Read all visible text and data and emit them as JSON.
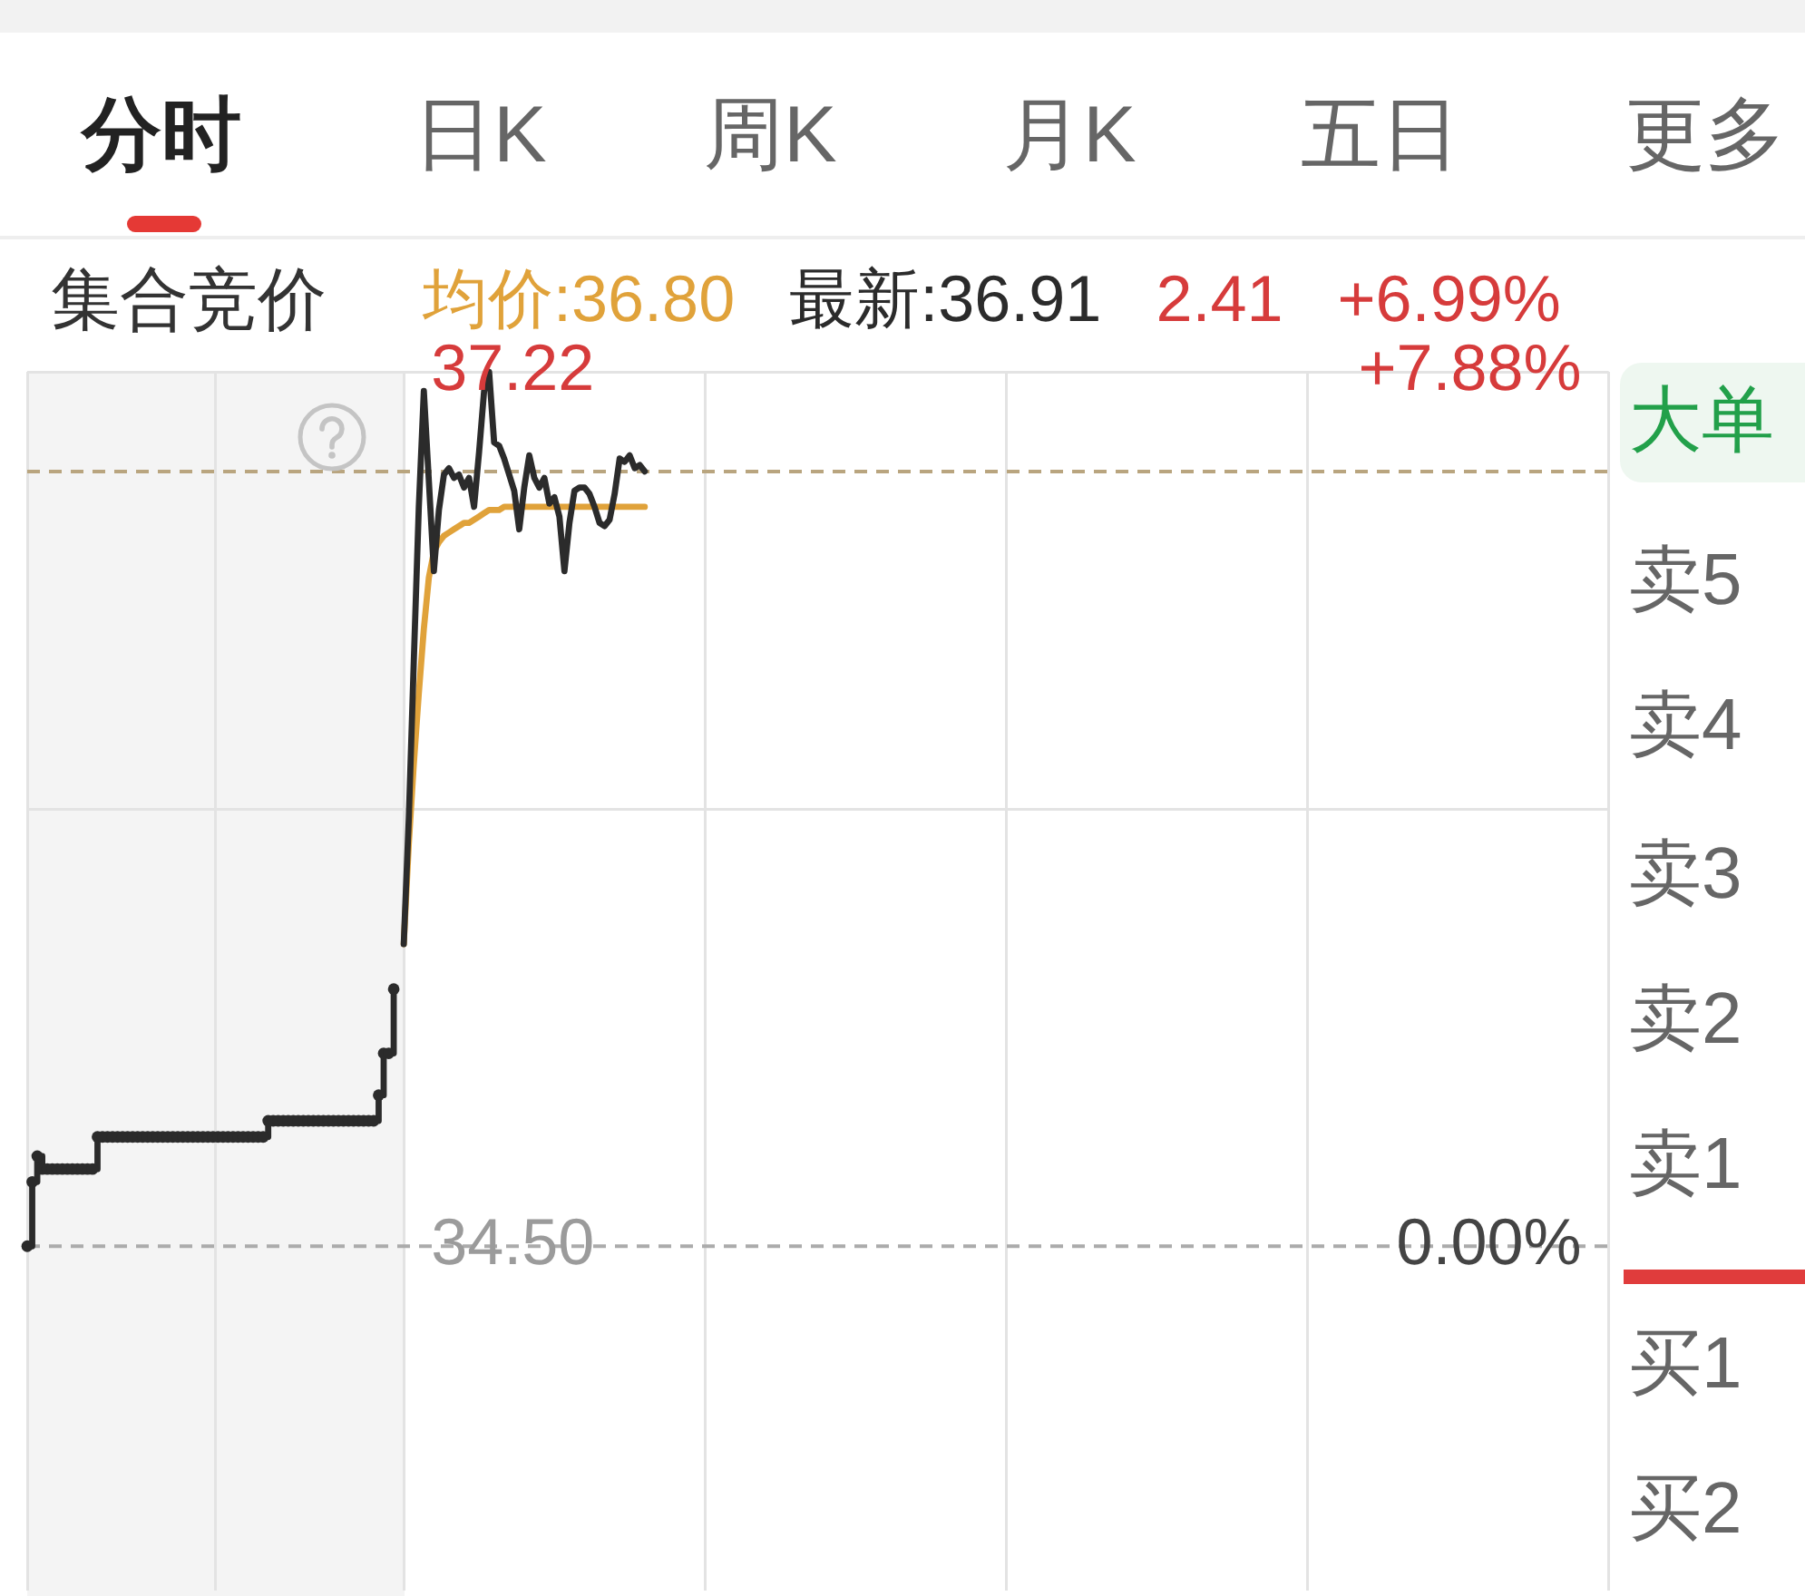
{
  "chart_data": {
    "type": "line",
    "categories": [
      null,
      null,
      null,
      null,
      null,
      null,
      null,
      null,
      null,
      null,
      null,
      null,
      null,
      null,
      null,
      null,
      null,
      null,
      null,
      null,
      null,
      null,
      null,
      null,
      null,
      null,
      null,
      null,
      null,
      null,
      null,
      null,
      null,
      null,
      null,
      null,
      null,
      null,
      null,
      null,
      null,
      null,
      null,
      null,
      null,
      null,
      null,
      null,
      null,
      null,
      null,
      null,
      null,
      null,
      null,
      null,
      null,
      null,
      null,
      null,
      null,
      null,
      null,
      null,
      null,
      null,
      null,
      null,
      null,
      null,
      null,
      null,
      null,
      null,
      null,
      null,
      null,
      null,
      null,
      null,
      null,
      null,
      null,
      null,
      null,
      null,
      null,
      null,
      null,
      null,
      null,
      null,
      null,
      null,
      null,
      null,
      null,
      null,
      null,
      null,
      null,
      null,
      null,
      null,
      null,
      null,
      null,
      null,
      null,
      null,
      null,
      null,
      null,
      null,
      null,
      null,
      null,
      null,
      null,
      null,
      null,
      null,
      null,
      null,
      null,
      null,
      null,
      null,
      null,
      null,
      null,
      null,
      null,
      null,
      null,
      null,
      null,
      null,
      null,
      null,
      null,
      null,
      null,
      null,
      null,
      null,
      null,
      null,
      null,
      null,
      null,
      null,
      null,
      null,
      null,
      null,
      null,
      null,
      null,
      null,
      null,
      null,
      null,
      null,
      null,
      null,
      null,
      null,
      null,
      null,
      null,
      null,
      null,
      null,
      null,
      null,
      null,
      null,
      null,
      null,
      null,
      null,
      null,
      null,
      null,
      null,
      null,
      null,
      null,
      null,
      null,
      null,
      null,
      null,
      null,
      null,
      null,
      null,
      null,
      null,
      null,
      null,
      null,
      null,
      null,
      null,
      null,
      null,
      null,
      null,
      null,
      null,
      null,
      null,
      null,
      null,
      null,
      null,
      null,
      null,
      null,
      null,
      null,
      null,
      null,
      null,
      null,
      null,
      null,
      null,
      null,
      null,
      null,
      null,
      null,
      null,
      null,
      null,
      null,
      null,
      null,
      null,
      null,
      null,
      null,
      null,
      null,
      null,
      null,
      null,
      null,
      null,
      null,
      null,
      null,
      null,
      null,
      null,
      null,
      null,
      null,
      null,
      null,
      null,
      null,
      null,
      null,
      null,
      null,
      null,
      null,
      null,
      null,
      null,
      null,
      null,
      null,
      null,
      null,
      null,
      null,
      null,
      null,
      null,
      null,
      null,
      null,
      null,
      null,
      null,
      null,
      null,
      null,
      null,
      null,
      null,
      null,
      null,
      null,
      null,
      null,
      null,
      null,
      null,
      null,
      null,
      null,
      null,
      null,
      null,
      null,
      null,
      null,
      null,
      null,
      null
    ],
    "series": [
      {
        "name": "均价:36.80",
        "color": "#e0a23a",
        "values": [
          null,
          null,
          null,
          null,
          null,
          null,
          null,
          null,
          null,
          null,
          null,
          null,
          null,
          null,
          null,
          null,
          null,
          null,
          null,
          null,
          null,
          null,
          null,
          null,
          null,
          null,
          null,
          null,
          null,
          null,
          null,
          null,
          null,
          null,
          null,
          null,
          null,
          null,
          null,
          null,
          null,
          null,
          null,
          null,
          null,
          null,
          null,
          null,
          null,
          null,
          null,
          null,
          null,
          null,
          null,
          null,
          null,
          null,
          null,
          null,
          null,
          null,
          null,
          null,
          null,
          null,
          null,
          null,
          null,
          null,
          null,
          null,
          null,
          null,
          null,
          35.44,
          35.75,
          36.0,
          36.22,
          36.42,
          36.58,
          36.66,
          36.69,
          36.71,
          36.72,
          36.73,
          36.74,
          36.75,
          36.75,
          36.76,
          36.77,
          36.78,
          36.79,
          36.79,
          36.79,
          36.8,
          36.8,
          36.8,
          36.8,
          36.8,
          36.8,
          36.8,
          36.8,
          36.8,
          36.8,
          36.8,
          36.8,
          36.8,
          36.8,
          36.8,
          36.8,
          36.8,
          36.8,
          36.8,
          36.8,
          36.8,
          36.8,
          36.8,
          36.8,
          36.8,
          36.8,
          36.8,
          36.8,
          36.8,
          null,
          null,
          null,
          null,
          null,
          null,
          null,
          null,
          null,
          null,
          null,
          null,
          null,
          null,
          null,
          null,
          null,
          null,
          null,
          null,
          null,
          null,
          null,
          null,
          null,
          null,
          null,
          null,
          null,
          null,
          null,
          null,
          null,
          null,
          null,
          null,
          null,
          null,
          null,
          null,
          null,
          null,
          null,
          null,
          null,
          null,
          null,
          null,
          null,
          null,
          null,
          null,
          null,
          null,
          null,
          null,
          null,
          null,
          null,
          null,
          null,
          null,
          null,
          null,
          null,
          null,
          null,
          null,
          null,
          null,
          null,
          null,
          null,
          null,
          null,
          null,
          null,
          null,
          null,
          null,
          null,
          null,
          null,
          null,
          null,
          null,
          null,
          null,
          null,
          null,
          null,
          null,
          null,
          null,
          null,
          null,
          null,
          null,
          null,
          null,
          null,
          null,
          null,
          null,
          null,
          null,
          null,
          null,
          null,
          null,
          null,
          null,
          null,
          null,
          null,
          null,
          null,
          null,
          null,
          null,
          null,
          null,
          null,
          null,
          null,
          null,
          null,
          null,
          null,
          null,
          null,
          null,
          null,
          null,
          null,
          null,
          null,
          null,
          null,
          null,
          null,
          null,
          null,
          null,
          null,
          null,
          null,
          null,
          null,
          null,
          null,
          null,
          null,
          null,
          null,
          null,
          null,
          null,
          null,
          null,
          null,
          null,
          null,
          null,
          null,
          null,
          null,
          null,
          null,
          null,
          null,
          null,
          null,
          null,
          null,
          null,
          null,
          null,
          null,
          null,
          null,
          null,
          null,
          null,
          null,
          null,
          null,
          null,
          null,
          null,
          null,
          null
        ]
      },
      {
        "name": "最新:36.91",
        "color": "#2b2b2b",
        "values": [
          null,
          null,
          null,
          null,
          null,
          null,
          null,
          null,
          null,
          null,
          null,
          null,
          null,
          null,
          null,
          null,
          null,
          null,
          null,
          null,
          null,
          null,
          null,
          null,
          null,
          null,
          null,
          null,
          null,
          null,
          null,
          null,
          null,
          null,
          null,
          null,
          null,
          null,
          null,
          null,
          null,
          null,
          null,
          null,
          null,
          null,
          null,
          null,
          null,
          null,
          null,
          null,
          null,
          null,
          null,
          null,
          null,
          null,
          null,
          null,
          null,
          null,
          null,
          null,
          null,
          null,
          null,
          null,
          null,
          null,
          null,
          null,
          null,
          null,
          null,
          35.44,
          35.83,
          36.32,
          36.8,
          37.16,
          36.88,
          36.6,
          36.79,
          36.9,
          36.92,
          36.89,
          36.9,
          36.86,
          36.89,
          36.8,
          36.97,
          37.16,
          37.22,
          37,
          36.99,
          36.95,
          36.9,
          36.85,
          36.73,
          36.86,
          36.96,
          36.89,
          36.86,
          36.89,
          36.81,
          36.83,
          36.77,
          36.6,
          36.75,
          36.85,
          36.86,
          36.86,
          36.84,
          36.8,
          36.75,
          36.74,
          36.76,
          36.84,
          36.95,
          36.94,
          36.96,
          36.92,
          36.93,
          36.91,
          null,
          null,
          null,
          null,
          null,
          null,
          null,
          null,
          null,
          null,
          null,
          null,
          null,
          null,
          null,
          null,
          null,
          null,
          null,
          null,
          null,
          null,
          null,
          null,
          null,
          null,
          null,
          null,
          null,
          null,
          null,
          null,
          null,
          null,
          null,
          null,
          null,
          null,
          null,
          null,
          null,
          null,
          null,
          null,
          null,
          null,
          null,
          null,
          null,
          null,
          null,
          null,
          null,
          null,
          null,
          null,
          null,
          null,
          null,
          null,
          null,
          null,
          null,
          null,
          null,
          null,
          null,
          null,
          null,
          null,
          null,
          null,
          null,
          null,
          null,
          null,
          null,
          null,
          null,
          null,
          null,
          null,
          null,
          null,
          null,
          null,
          null,
          null,
          null,
          null,
          null,
          null,
          null,
          null,
          null,
          null,
          null,
          null,
          null,
          null,
          null,
          null,
          null,
          null,
          null,
          null,
          null,
          null,
          null,
          null,
          null,
          null,
          null,
          null,
          null,
          null,
          null,
          null,
          null,
          null,
          null,
          null,
          null,
          null,
          null,
          null,
          null,
          null,
          null,
          null,
          null,
          null,
          null,
          null,
          null,
          null,
          null,
          null,
          null,
          null,
          null,
          null,
          null,
          null,
          null,
          null,
          null,
          null,
          null,
          null,
          null,
          null,
          null,
          null,
          null,
          null,
          null,
          null,
          null,
          null,
          null,
          null,
          null,
          null,
          null,
          null,
          null,
          null,
          null,
          null,
          null,
          null,
          null,
          null,
          null,
          null,
          null,
          null,
          null,
          null,
          null,
          null,
          null,
          null,
          null,
          null,
          null,
          null,
          null,
          null,
          null,
          null
        ]
      },
      {
        "type": "step",
        "color": "#2b2b2b",
        "marker": "circle",
        "values": [
          34.5,
          34.7,
          34.78,
          34.74,
          34.74,
          34.74,
          34.74,
          34.74,
          34.74,
          34.74,
          34.74,
          34.74,
          34.74,
          34.74,
          34.84,
          34.84,
          34.84,
          34.84,
          34.84,
          34.84,
          34.84,
          34.84,
          34.84,
          34.84,
          34.84,
          34.84,
          34.84,
          34.84,
          34.84,
          34.84,
          34.84,
          34.84,
          34.84,
          34.84,
          34.84,
          34.84,
          34.84,
          34.84,
          34.84,
          34.84,
          34.84,
          34.84,
          34.84,
          34.84,
          34.84,
          34.84,
          34.84,
          34.84,
          34.89,
          34.89,
          34.89,
          34.89,
          34.89,
          34.89,
          34.89,
          34.89,
          34.89,
          34.89,
          34.89,
          34.89,
          34.89,
          34.89,
          34.89,
          34.89,
          34.89,
          34.89,
          34.89,
          34.89,
          34.89,
          34.89,
          34.97,
          35.1,
          35.1,
          35.3,
          null,
          null,
          null,
          null,
          null,
          null,
          null,
          null,
          null,
          null,
          null,
          null,
          null,
          null,
          null,
          null,
          null,
          null,
          null,
          null,
          null,
          null,
          null,
          null,
          null,
          null,
          null,
          null,
          null,
          null,
          null,
          null,
          null,
          null,
          null,
          null,
          null,
          null,
          null,
          null,
          null,
          null,
          null,
          null,
          null,
          null,
          null,
          null,
          null,
          null,
          null,
          null,
          null,
          null,
          null,
          null,
          null,
          null,
          null,
          null,
          null,
          null,
          null,
          null,
          null,
          null,
          null,
          null,
          null,
          null,
          null,
          null,
          null,
          null,
          null,
          null,
          null,
          null,
          null,
          null,
          null,
          null,
          null,
          null,
          null,
          null,
          null,
          null,
          null,
          null,
          null,
          null,
          null,
          null,
          null,
          null,
          null,
          null,
          null,
          null,
          null,
          null,
          null,
          null,
          null,
          null,
          null,
          null,
          null,
          null,
          null,
          null,
          null,
          null,
          null,
          null,
          null,
          null,
          null,
          null,
          null,
          null,
          null,
          null,
          null,
          null,
          null,
          null,
          null,
          null,
          null,
          null,
          null,
          null,
          null,
          null,
          null,
          null,
          null,
          null,
          null,
          null,
          null,
          null,
          null,
          null,
          null,
          null,
          null,
          null,
          null,
          null,
          null,
          null,
          null,
          null,
          null,
          null,
          null,
          null,
          null,
          null,
          null,
          null,
          null,
          null,
          null,
          null,
          null,
          null,
          null,
          null,
          null,
          null,
          null,
          null,
          null,
          null,
          null,
          null,
          null,
          null,
          null,
          null,
          null,
          null,
          null,
          null,
          null,
          null,
          null,
          null,
          null,
          null,
          null,
          null,
          null,
          null,
          null,
          null,
          null,
          null,
          null,
          null,
          null,
          null,
          null,
          null,
          null,
          null,
          null,
          null,
          null,
          null,
          null,
          null,
          null,
          null,
          null,
          null,
          null,
          null,
          null,
          null,
          null,
          null,
          null,
          null,
          null,
          null,
          null,
          null,
          null,
          null,
          null,
          null,
          null,
          null,
          null,
          null,
          null,
          null
        ]
      }
    ],
    "ylim": [
      33.43,
      37.22
    ],
    "yticks": [
      {
        "value": 37.22,
        "label": "37.22"
      },
      {
        "value": 35.86,
        "label": null
      },
      {
        "value": 34.5,
        "label": "34.50"
      }
    ],
    "y2lim": [
      -3.1,
      7.88
    ],
    "y2ticks": [
      {
        "value": 7.88,
        "label": "+7.88%"
      },
      {
        "value": 0,
        "label": "0.00%"
      }
    ],
    "ref_lines": [
      {
        "axis": "y",
        "value": 36.91,
        "color": "#b9a57f",
        "line_style": "dashed"
      },
      {
        "axis": "y",
        "value": 34.5,
        "color": "#ababab",
        "line_style": "dashed"
      }
    ],
    "grid": true,
    "legend": "top",
    "annotations": [
      "分时",
      "日K",
      "周K",
      "月K",
      "五日",
      "更多",
      "集合竞价",
      "2.41",
      "+6.99%",
      "大单",
      "卖5",
      "卖4",
      "卖3",
      "卖2",
      "卖1",
      "买1",
      "买2"
    ]
  }
}
